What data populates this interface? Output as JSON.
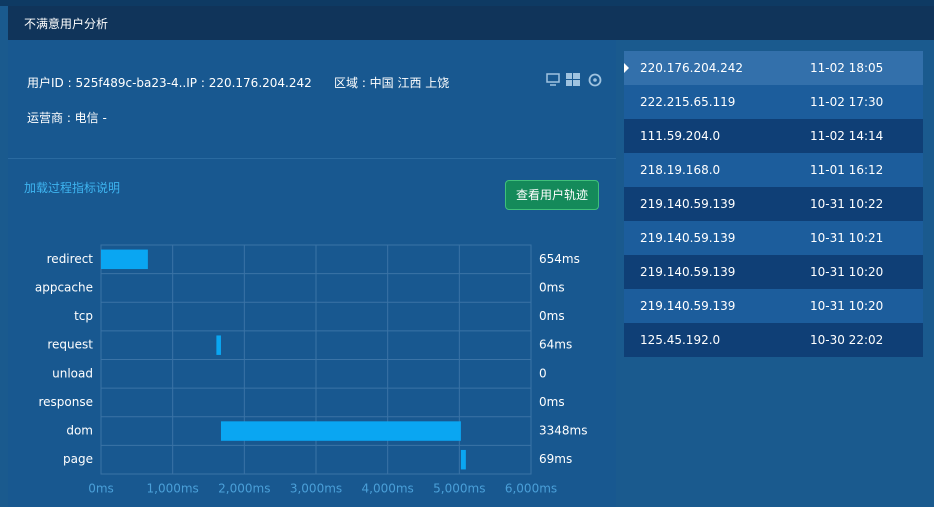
{
  "header": {
    "title": "不满意用户分析"
  },
  "info": {
    "user": "用户ID : 525f489c-ba23-4..IP : 220.176.204.242",
    "region": "区域 : 中国 江西 上饶",
    "isp": "运营商 : 电信 -"
  },
  "link": "加载过程指标说明",
  "button": "查看用户轨迹",
  "chart_data": {
    "type": "floating-bar",
    "orientation": "horizontal",
    "color": "#0aa6f2",
    "categories": [
      "redirect",
      "appcache",
      "tcp",
      "request",
      "unload",
      "response",
      "dom",
      "page"
    ],
    "starts": [
      0,
      654,
      654,
      1610,
      1674,
      1674,
      1674,
      5022
    ],
    "values": [
      654,
      0,
      0,
      64,
      0,
      0,
      3348,
      69
    ],
    "value_labels": [
      "654ms",
      "0ms",
      "0ms",
      "64ms",
      "0",
      "0ms",
      "3348ms",
      "69ms"
    ],
    "xlim": [
      0,
      6000
    ],
    "xticks": [
      {
        "value": 0,
        "label": "0ms"
      },
      {
        "value": 1000,
        "label": "1,000ms"
      },
      {
        "value": 2000,
        "label": "2,000ms"
      },
      {
        "value": 3000,
        "label": "3,000ms"
      },
      {
        "value": 4000,
        "label": "4,000ms"
      },
      {
        "value": 5000,
        "label": "5,000ms"
      },
      {
        "value": 6000,
        "label": "6,000ms"
      }
    ],
    "grid": true
  },
  "sessions": [
    [
      "220.176.204.242",
      "11-02 18:05"
    ],
    [
      "222.215.65.119",
      "11-02 17:30"
    ],
    [
      "111.59.204.0",
      "11-02 14:14"
    ],
    [
      "218.19.168.0",
      "11-01 16:12"
    ],
    [
      "219.140.59.139",
      "10-31 10:22"
    ],
    [
      "219.140.59.139",
      "10-31 10:21"
    ],
    [
      "219.140.59.139",
      "10-31 10:20"
    ],
    [
      "219.140.59.139",
      "10-31 10:20"
    ],
    [
      "125.45.192.0",
      "10-30 22:02"
    ]
  ]
}
